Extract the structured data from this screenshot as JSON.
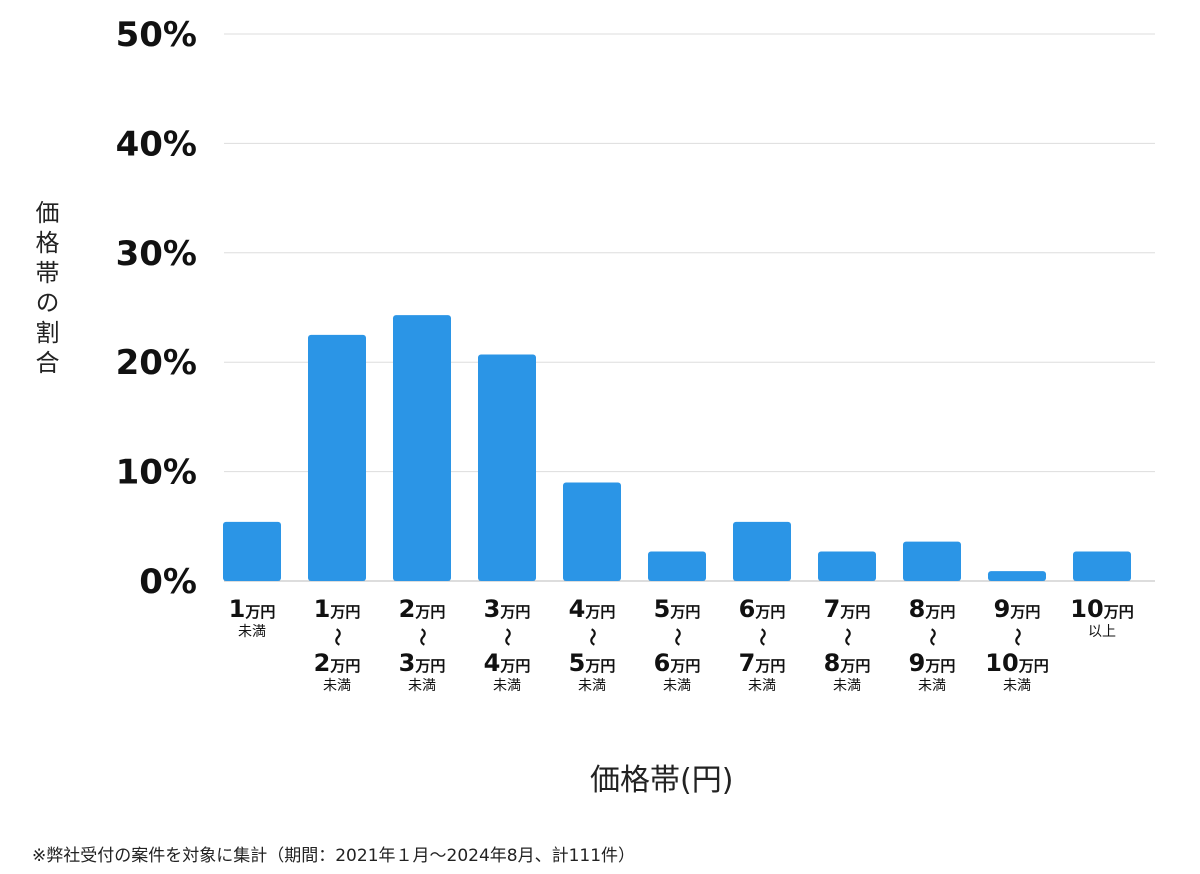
{
  "chart_data": {
    "type": "bar",
    "title": "",
    "xlabel": "価格帯(円)",
    "ylabel": "価格帯の割合",
    "ylim": [
      0,
      50
    ],
    "yticks": [
      "0%",
      "10%",
      "20%",
      "30%",
      "40%",
      "50%"
    ],
    "grid": true,
    "unit": "万円",
    "tilde": "〜",
    "categories": [
      {
        "from": "1",
        "to": "",
        "suffix": "未満"
      },
      {
        "from": "1",
        "to": "2",
        "suffix": "未満"
      },
      {
        "from": "2",
        "to": "3",
        "suffix": "未満"
      },
      {
        "from": "3",
        "to": "4",
        "suffix": "未満"
      },
      {
        "from": "4",
        "to": "5",
        "suffix": "未満"
      },
      {
        "from": "5",
        "to": "6",
        "suffix": "未満"
      },
      {
        "from": "6",
        "to": "7",
        "suffix": "未満"
      },
      {
        "from": "7",
        "to": "8",
        "suffix": "未満"
      },
      {
        "from": "8",
        "to": "9",
        "suffix": "未満"
      },
      {
        "from": "9",
        "to": "10",
        "suffix": "未満"
      },
      {
        "from": "10",
        "to": "",
        "suffix": "以上"
      }
    ],
    "values": [
      5.4,
      22.5,
      24.3,
      20.7,
      9.0,
      2.7,
      5.4,
      2.7,
      3.6,
      0.9,
      2.7
    ],
    "bar_color": "#2b95e6"
  },
  "footnote": "※弊社受付の案件を対象に集計（期間：2021年１月〜2024年8月、計111件）"
}
